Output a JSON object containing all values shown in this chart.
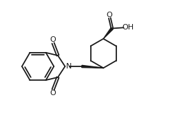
{
  "background": "#ffffff",
  "line_color": "#1a1a1a",
  "line_width": 1.3,
  "fig_width": 2.47,
  "fig_height": 1.87,
  "dpi": 100,
  "xlim": [
    0,
    10
  ],
  "ylim": [
    0,
    8
  ]
}
